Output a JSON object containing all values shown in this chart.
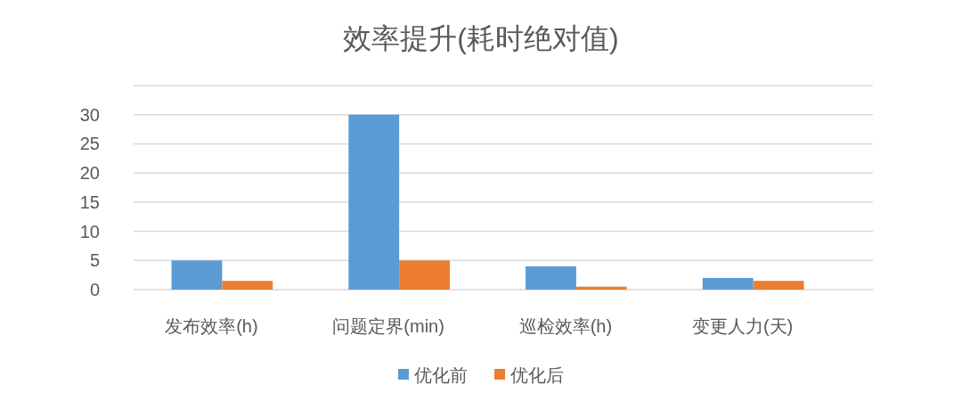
{
  "chart_data": {
    "type": "bar",
    "title": "效率提升(耗时绝对值)",
    "categories": [
      "发布效率(h)",
      "问题定界(min)",
      "巡检效率(h)",
      "变更人力(天)"
    ],
    "series": [
      {
        "name": "优化前",
        "color": "#5b9bd5",
        "values": [
          5,
          30,
          4,
          2
        ]
      },
      {
        "name": "优化后",
        "color": "#ed7d31",
        "values": [
          1.5,
          5,
          0.5,
          1.5
        ]
      }
    ],
    "ylim": [
      0,
      35
    ],
    "yticks": [
      0,
      5,
      10,
      15,
      20,
      25,
      30,
      {
        "value": 35,
        "label": null
      }
    ],
    "grid": "y",
    "legend": "bottom"
  }
}
